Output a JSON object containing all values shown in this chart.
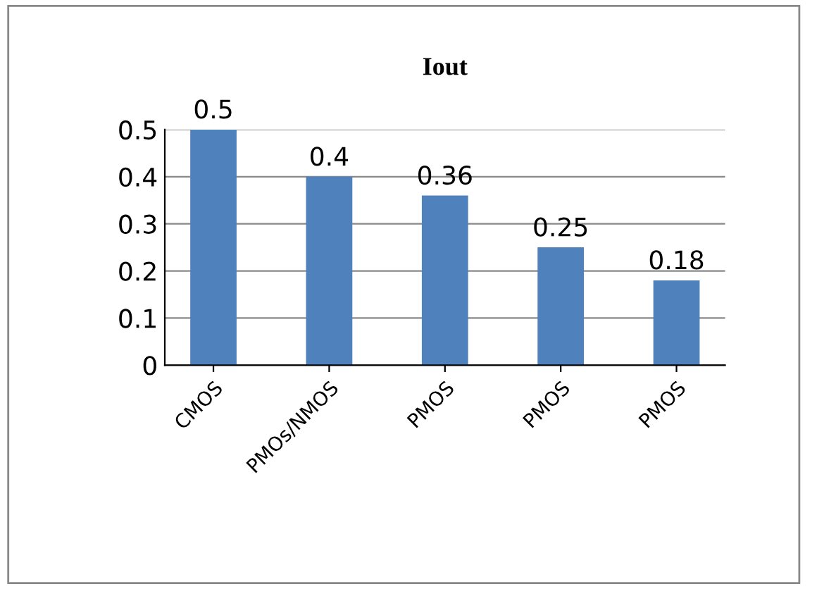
{
  "chart_data": {
    "type": "bar",
    "title": "Iout",
    "categories": [
      "CMOS",
      "PMOs/NMOS",
      "PMOS",
      "PMOS",
      "PMOS"
    ],
    "values": [
      0.5,
      0.4,
      0.36,
      0.25,
      0.18
    ],
    "color": "#4f81bd",
    "ylim": [
      0,
      0.5
    ],
    "yticks": [
      0,
      0.1,
      0.2,
      0.3,
      0.4,
      0.5
    ],
    "grid": "y",
    "data_labels": true,
    "legend": false
  }
}
